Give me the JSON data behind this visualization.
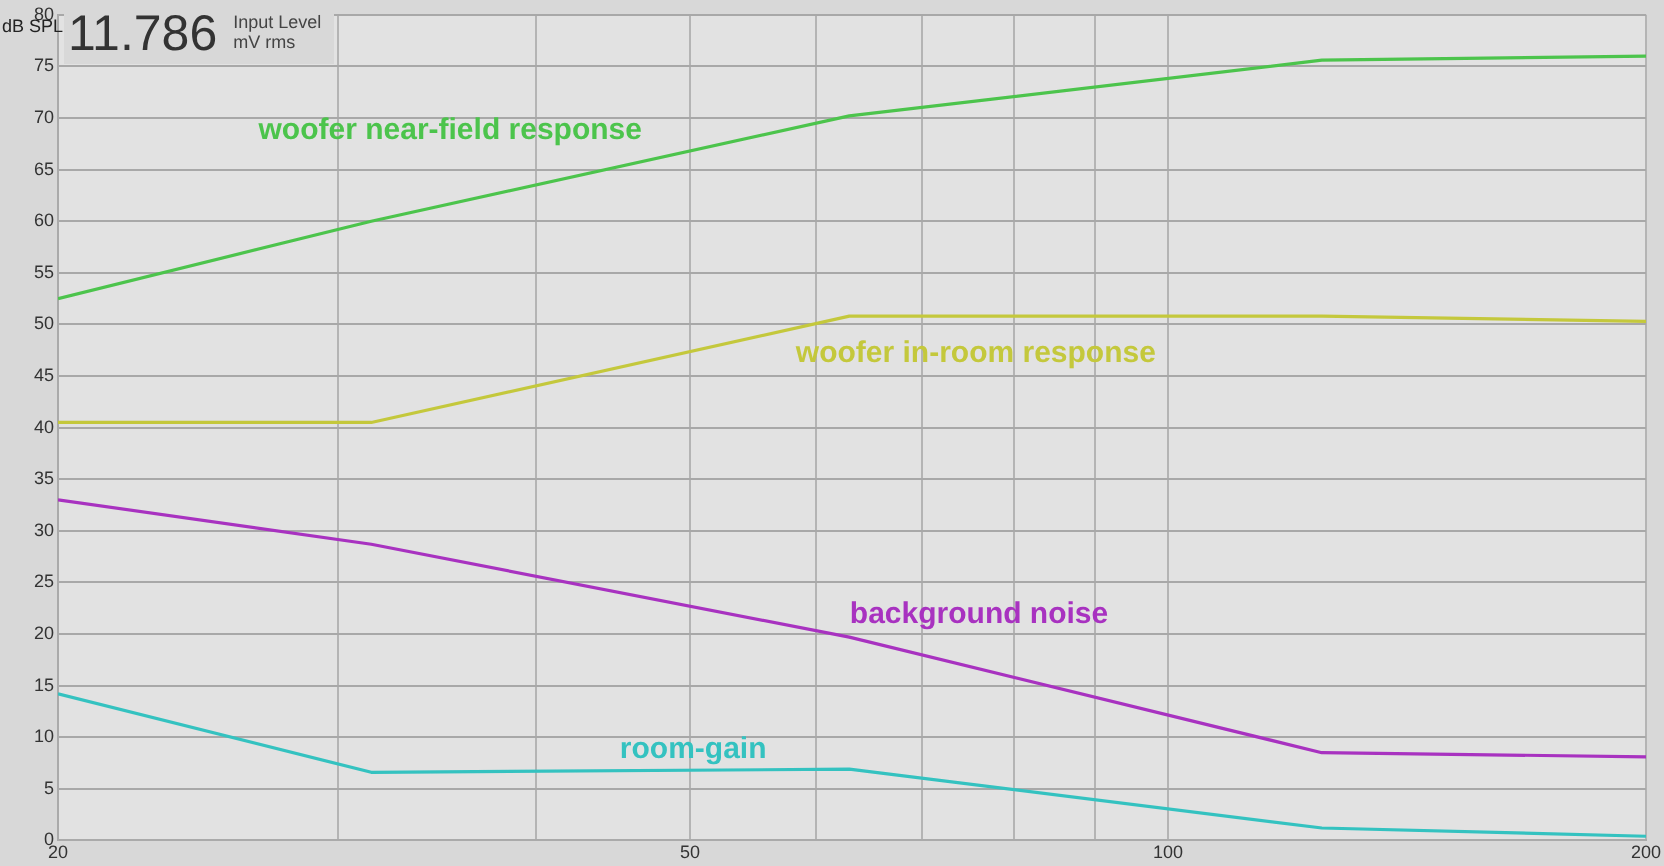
{
  "chart_data": {
    "type": "line",
    "ylabel": "dB SPL",
    "annotations": [
      "11.786",
      "Input Level",
      "mV rms"
    ],
    "x": [
      20,
      31.5,
      63,
      125,
      200
    ],
    "series": [
      {
        "name": "woofer near-field response",
        "color": "#4cc44c",
        "values": [
          52.5,
          60,
          70.2,
          75.6,
          76
        ]
      },
      {
        "name": "woofer in-room response",
        "color": "#c4c83c",
        "values": [
          40.5,
          40.5,
          50.8,
          50.8,
          50.3
        ]
      },
      {
        "name": "background noise",
        "color": "#a832c0",
        "values": [
          33,
          28.7,
          19.7,
          8.5,
          8.1
        ]
      },
      {
        "name": "room-gain",
        "color": "#34c2c0",
        "values": [
          14.2,
          6.6,
          6.9,
          1.2,
          0.4
        ]
      }
    ],
    "log": "x",
    "xlim": [
      20,
      200
    ],
    "xticks": [
      20,
      {
        "value": 30,
        "label": null
      },
      {
        "value": 40,
        "label": null
      },
      50,
      {
        "value": 60,
        "label": null
      },
      {
        "value": 70,
        "label": null
      },
      {
        "value": 80,
        "label": null
      },
      {
        "value": 90,
        "label": null
      },
      100,
      200
    ],
    "ylim": [
      0,
      80
    ],
    "yticks": [
      0,
      5,
      10,
      15,
      20,
      25,
      30,
      35,
      40,
      45,
      50,
      55,
      60,
      65,
      70,
      75,
      80
    ],
    "grid": true,
    "legend": false,
    "marker": "none",
    "line_style": "solid"
  }
}
